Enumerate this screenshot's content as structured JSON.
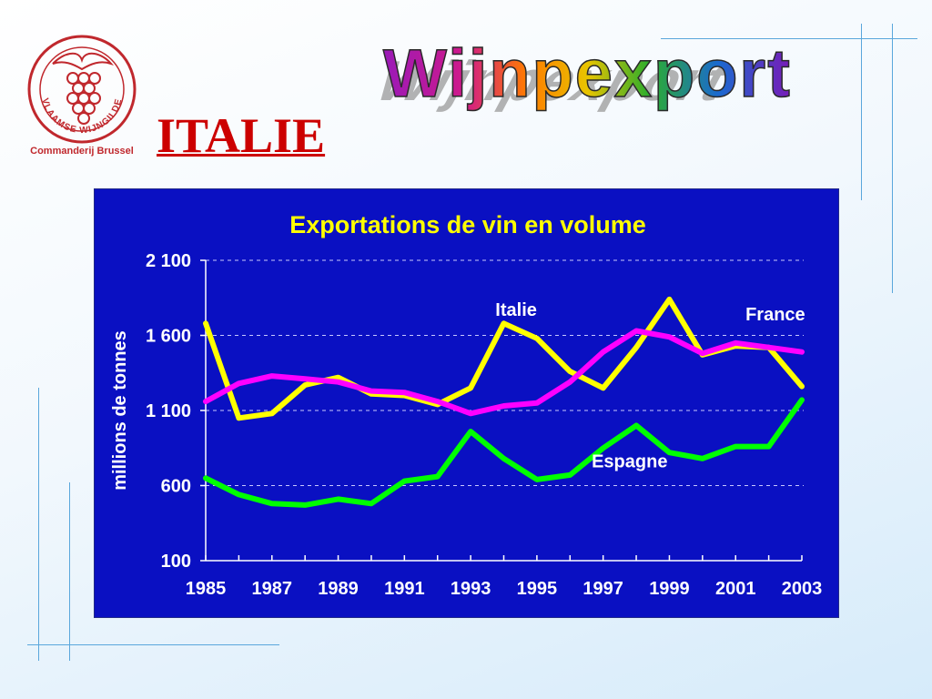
{
  "logo": {
    "ring_text": "VLAAMSE WIJNGILDE",
    "caption": "Commanderij Brussel",
    "color": "#c0282d"
  },
  "page": {
    "heading": "ITALIE",
    "wordart_title": "Wijnpexport"
  },
  "colors": {
    "chart_background": "#0a10c2",
    "heading": "#cc0000",
    "accent_lines": "#5aa7dc"
  },
  "chart_data": {
    "type": "line",
    "title": "Exportations de vin en volume",
    "ylabel": "millions de tonnes",
    "xlabel": "",
    "ylim": [
      100,
      2100
    ],
    "y_ticks": [
      100,
      600,
      1100,
      1600,
      2100
    ],
    "y_tick_labels": [
      "100",
      "600",
      "1 100",
      "1 600",
      "2 100"
    ],
    "x": [
      1985,
      1986,
      1987,
      1988,
      1989,
      1990,
      1991,
      1992,
      1993,
      1994,
      1995,
      1996,
      1997,
      1998,
      1999,
      2000,
      2001,
      2002,
      2003
    ],
    "x_tick_labels": [
      "1985",
      "1987",
      "1989",
      "1991",
      "1993",
      "1995",
      "1997",
      "1999",
      "2001",
      "2003"
    ],
    "grid": "horizontal dashed",
    "series": [
      {
        "name": "Italie",
        "color": "#ffff00",
        "values": [
          1680,
          1050,
          1080,
          1270,
          1320,
          1210,
          1200,
          1140,
          1250,
          1680,
          1580,
          1360,
          1250,
          1520,
          1840,
          1470,
          1530,
          1520,
          1260
        ]
      },
      {
        "name": "France",
        "color": "#ff00ff",
        "values": [
          1160,
          1280,
          1330,
          1310,
          1290,
          1230,
          1220,
          1160,
          1080,
          1130,
          1150,
          1290,
          1490,
          1630,
          1590,
          1480,
          1550,
          1520,
          1490
        ]
      },
      {
        "name": "Espagne",
        "color": "#00ff00",
        "values": [
          650,
          540,
          480,
          470,
          510,
          480,
          630,
          660,
          960,
          780,
          640,
          670,
          850,
          1000,
          820,
          780,
          860,
          860,
          1170
        ]
      }
    ]
  }
}
